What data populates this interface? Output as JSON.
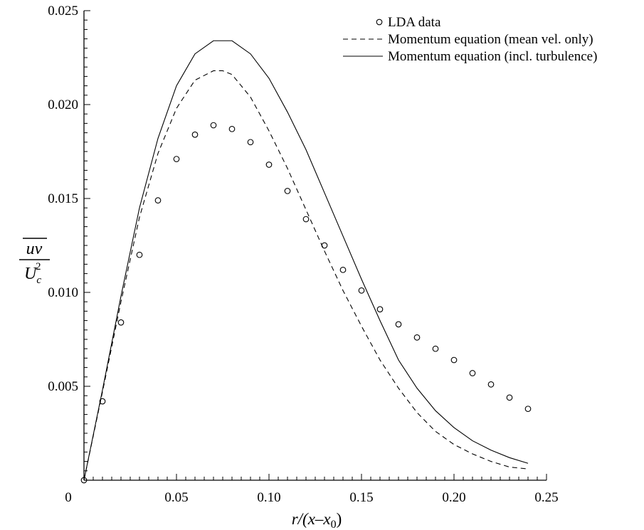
{
  "chart_data": {
    "type": "line",
    "xlabel": "r/(x–x0)",
    "xlabel_parts": {
      "main": "r/(x–x",
      "sub": "0",
      "close": ")"
    },
    "ylabel": "uv / Uc²",
    "ylabel_parts": {
      "numerator": "uv",
      "denominator": "U",
      "den_sub": "c",
      "den_sup": "2"
    },
    "xlim": [
      0,
      0.25
    ],
    "ylim": [
      0,
      0.025
    ],
    "x_ticks": [
      {
        "value": 0,
        "label": "0"
      },
      {
        "value": 0.05,
        "label": "0.05"
      },
      {
        "value": 0.1,
        "label": "0.10"
      },
      {
        "value": 0.15,
        "label": "0.15"
      },
      {
        "value": 0.2,
        "label": "0.20"
      },
      {
        "value": 0.25,
        "label": "0.25"
      }
    ],
    "y_ticks": [
      {
        "value": 0.005,
        "label": "0.005"
      },
      {
        "value": 0.01,
        "label": "0.010"
      },
      {
        "value": 0.015,
        "label": "0.015"
      },
      {
        "value": 0.02,
        "label": "0.020"
      },
      {
        "value": 0.025,
        "label": "0.025"
      }
    ],
    "grid": false,
    "legend_position": "top-right",
    "series": [
      {
        "name": "LDA data",
        "style": "markers",
        "x": [
          0,
          0.01,
          0.02,
          0.03,
          0.04,
          0.05,
          0.06,
          0.07,
          0.08,
          0.09,
          0.1,
          0.11,
          0.12,
          0.13,
          0.14,
          0.15,
          0.16,
          0.17,
          0.18,
          0.19,
          0.2,
          0.21,
          0.22,
          0.23,
          0.24
        ],
        "y": [
          0.0,
          0.0042,
          0.0084,
          0.012,
          0.0149,
          0.0171,
          0.0184,
          0.0189,
          0.0187,
          0.018,
          0.0168,
          0.0154,
          0.0139,
          0.0125,
          0.0112,
          0.0101,
          0.0091,
          0.0083,
          0.0076,
          0.007,
          0.0064,
          0.0057,
          0.0051,
          0.0044,
          0.0038
        ]
      },
      {
        "name": "Momentum equation (mean vel. only)",
        "style": "dashed",
        "x": [
          0,
          0.01,
          0.02,
          0.03,
          0.04,
          0.05,
          0.06,
          0.07,
          0.075,
          0.08,
          0.09,
          0.1,
          0.11,
          0.12,
          0.13,
          0.14,
          0.15,
          0.16,
          0.17,
          0.18,
          0.19,
          0.2,
          0.21,
          0.22,
          0.23,
          0.24
        ],
        "y": [
          0.0,
          0.0047,
          0.0095,
          0.014,
          0.0174,
          0.0198,
          0.0213,
          0.0218,
          0.0218,
          0.0216,
          0.0204,
          0.0186,
          0.0166,
          0.0144,
          0.0122,
          0.0101,
          0.0082,
          0.0064,
          0.0049,
          0.0036,
          0.0026,
          0.0019,
          0.0014,
          0.001,
          0.0007,
          0.0006
        ]
      },
      {
        "name": "Momentum equation (incl. turbulence)",
        "style": "solid",
        "x": [
          0,
          0.01,
          0.02,
          0.03,
          0.04,
          0.05,
          0.06,
          0.07,
          0.08,
          0.09,
          0.1,
          0.11,
          0.12,
          0.13,
          0.14,
          0.15,
          0.16,
          0.17,
          0.18,
          0.19,
          0.2,
          0.21,
          0.22,
          0.23,
          0.24
        ],
        "y": [
          0.0,
          0.0048,
          0.0098,
          0.0145,
          0.0182,
          0.021,
          0.0227,
          0.0234,
          0.0234,
          0.0227,
          0.0214,
          0.0196,
          0.0176,
          0.0153,
          0.013,
          0.0107,
          0.0085,
          0.0064,
          0.0049,
          0.0037,
          0.0028,
          0.0021,
          0.0016,
          0.0012,
          0.0009
        ]
      }
    ]
  }
}
